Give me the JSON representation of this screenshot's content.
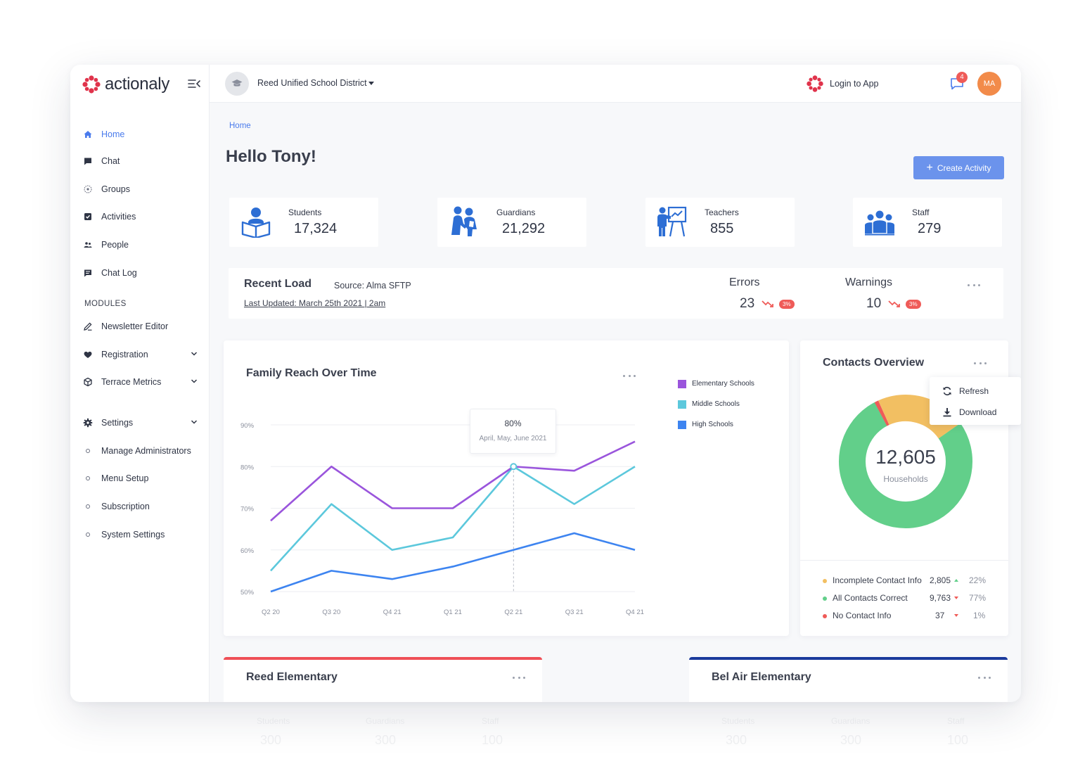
{
  "brand": {
    "name": "actionaly"
  },
  "sidebar": {
    "items": [
      {
        "label": "Home",
        "icon": "home-icon",
        "active": true
      },
      {
        "label": "Chat",
        "icon": "chat-icon"
      },
      {
        "label": "Groups",
        "icon": "groups-icon"
      },
      {
        "label": "Activities",
        "icon": "activities-icon"
      },
      {
        "label": "People",
        "icon": "people-icon"
      },
      {
        "label": "Chat Log",
        "icon": "chat-log-icon"
      }
    ],
    "modules_title": "MODULES",
    "modules": [
      {
        "label": "Newsletter Editor",
        "icon": "pencil-icon"
      },
      {
        "label": "Registration",
        "icon": "heart-icon",
        "expandable": true
      },
      {
        "label": "Terrace Metrics",
        "icon": "cube-icon",
        "expandable": true
      }
    ],
    "settings": {
      "label": "Settings",
      "icon": "gear-icon",
      "expandable": true
    },
    "settings_items": [
      {
        "label": "Manage Administrators"
      },
      {
        "label": "Menu Setup"
      },
      {
        "label": "Subscription"
      },
      {
        "label": "System Settings"
      }
    ]
  },
  "topbar": {
    "district": "Reed Unified School District",
    "login_label": "Login to App",
    "notification_count": "4",
    "user_initials": "MA"
  },
  "breadcrumb": "Home",
  "page_title": "Hello Tony!",
  "create_button": {
    "plus": "+",
    "label": "Create Activity"
  },
  "stats": [
    {
      "label": "Students",
      "value": "17,324",
      "icon": "student-reading-icon"
    },
    {
      "label": "Guardians",
      "value": "21,292",
      "icon": "guardians-icon"
    },
    {
      "label": "Teachers",
      "value": "855",
      "icon": "teacher-board-icon"
    },
    {
      "label": "Staff",
      "value": "279",
      "icon": "staff-group-icon"
    }
  ],
  "recent_load": {
    "title": "Recent Load",
    "source": "Source: Alma SFTP",
    "last_updated": "Last Updated: March 25th 2021 | 2am",
    "errors": {
      "label": "Errors",
      "value": "23",
      "badge": "3%"
    },
    "warnings": {
      "label": "Warnings",
      "value": "10",
      "badge": "3%"
    }
  },
  "family_chart": {
    "title": "Family Reach Over Time",
    "tooltip": {
      "value": "80%",
      "label": "April, May, June 2021"
    }
  },
  "chart_data": {
    "type": "line",
    "title": "Family Reach Over Time",
    "categories": [
      "Q2 20",
      "Q3 20",
      "Q4 21",
      "Q1 21",
      "Q2 21",
      "Q3 21",
      "Q4 21"
    ],
    "y_ticks": [
      "90%",
      "80%",
      "70%",
      "60%",
      "50%"
    ],
    "ylim": [
      50,
      90
    ],
    "grid": true,
    "legend_position": "right",
    "series": [
      {
        "name": "Elementary Schools",
        "color": "#9a55dc",
        "values": [
          67,
          80,
          70,
          70,
          80,
          79,
          86
        ]
      },
      {
        "name": "Middle Schools",
        "color": "#5cc8dc",
        "values": [
          55,
          71,
          60,
          63,
          80,
          71,
          80
        ]
      },
      {
        "name": "High Schools",
        "color": "#3d84f0",
        "values": [
          50,
          55,
          53,
          56,
          60,
          64,
          60
        ]
      }
    ]
  },
  "contacts": {
    "title": "Contacts Overview",
    "total": "12,605",
    "total_label": "Households",
    "menu": [
      {
        "label": "Refresh",
        "icon": "refresh-icon"
      },
      {
        "label": "Download",
        "icon": "download-icon"
      }
    ],
    "rows": [
      {
        "label": "Incomplete Contact Info",
        "value": "2,805",
        "pct": "22%",
        "color": "#f2bf62",
        "trend": "up"
      },
      {
        "label": "All Contacts Correct",
        "value": "9,763",
        "pct": "77%",
        "color": "#62cf8a",
        "trend": "down"
      },
      {
        "label": "No Contact Info",
        "value": "37",
        "pct": "1%",
        "color": "#ef5b58",
        "trend": "down"
      }
    ],
    "donut": [
      {
        "name": "Incomplete Contact Info",
        "value": 22,
        "color": "#f2bf62"
      },
      {
        "name": "All Contacts Correct",
        "value": 77,
        "color": "#62cf8a"
      },
      {
        "name": "No Contact Info",
        "value": 1,
        "color": "#ef5b58"
      }
    ]
  },
  "schools": [
    {
      "title": "Reed Elementary",
      "color": "#ef4f56"
    },
    {
      "title": "Bel Air Elementary",
      "color": "#1a3a9c"
    }
  ],
  "reflection": {
    "labels": [
      "Students",
      "Guardians",
      "Staff"
    ],
    "values": [
      "300",
      "300",
      "100"
    ]
  }
}
